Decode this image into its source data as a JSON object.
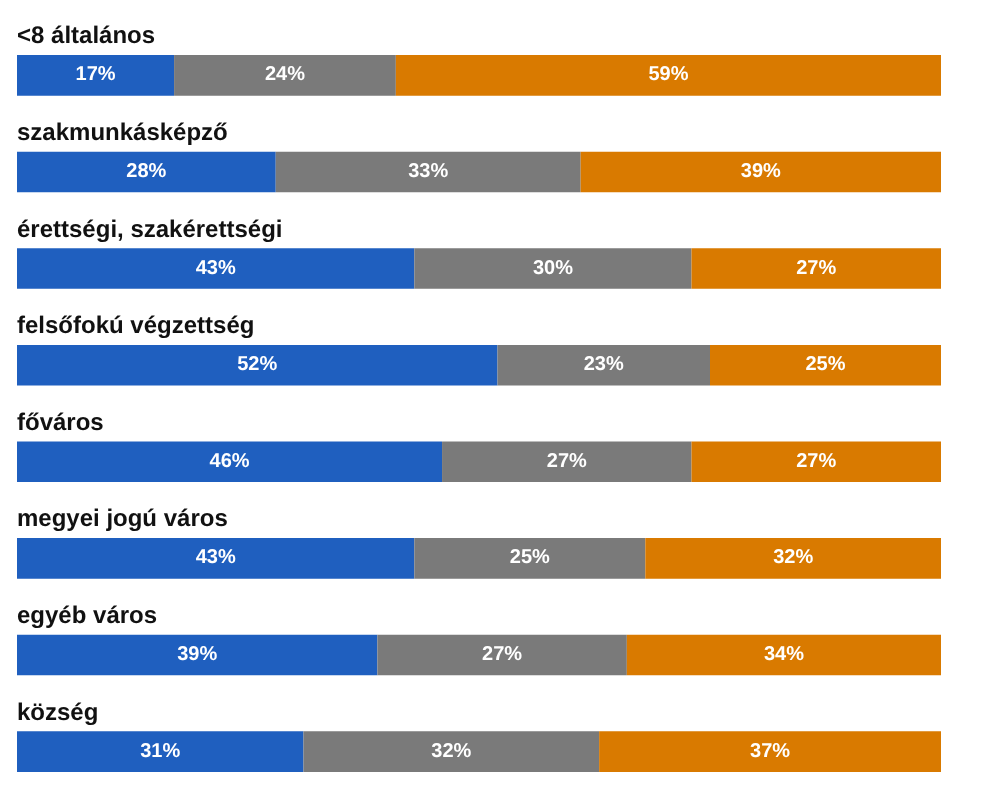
{
  "chart_data": {
    "type": "bar",
    "orientation": "horizontal",
    "stacked": true,
    "tick_labels": false,
    "categories": [
      "<8 általános",
      "szakmunkásképző",
      "érettségi, szakérettségi",
      "felsőfokú végzettség",
      "főváros",
      "megyei jogú város",
      "egyéb város",
      "község"
    ],
    "series": [
      {
        "color": "#1f5fbf",
        "values": [
          17,
          28,
          43,
          52,
          46,
          43,
          39,
          31
        ],
        "value_labels": [
          "17%",
          "28%",
          "43%",
          "52%",
          "46%",
          "43%",
          "39%",
          "31%"
        ]
      },
      {
        "color": "#7a7a7a",
        "values": [
          24,
          33,
          30,
          23,
          27,
          25,
          27,
          32
        ],
        "value_labels": [
          "24%",
          "33%",
          "30%",
          "23%",
          "27%",
          "25%",
          "27%",
          "32%"
        ]
      },
      {
        "color": "#d97a00",
        "values": [
          59,
          39,
          27,
          25,
          27,
          32,
          34,
          37
        ],
        "value_labels": [
          "59%",
          "39%",
          "27%",
          "25%",
          "27%",
          "32%",
          "34%",
          "37%"
        ]
      }
    ],
    "grid": false
  }
}
